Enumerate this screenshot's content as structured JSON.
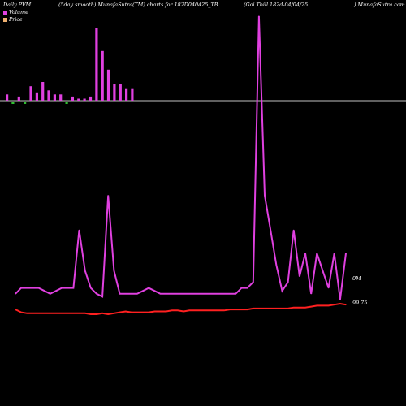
{
  "header": {
    "left": "Daily PVM",
    "center": "(5day smooth) MunafaSutra(TM) charts for 182D040425_TB",
    "right": "(Goi  Tbill 182d-04/04/25",
    "site": ") MunafaSutra.com"
  },
  "legend": [
    {
      "label": "Volume",
      "color": "#e040e0"
    },
    {
      "label": "Price",
      "color": "#f0b070"
    }
  ],
  "colors": {
    "volume_up": "#e040e0",
    "volume_down": "#30c030",
    "volume_line": "#e040e0",
    "price_line": "#ff2020",
    "baseline": "#ffffff"
  },
  "chart_data": {
    "type": "bar+line",
    "x": [
      1,
      2,
      3,
      4,
      5,
      6,
      7,
      8,
      9,
      10,
      11,
      12,
      13,
      14,
      15,
      16,
      17,
      18,
      19,
      20,
      21,
      22,
      23,
      24,
      25,
      26,
      27,
      28,
      29,
      30,
      31,
      32,
      33,
      34,
      35,
      36,
      37,
      38,
      39,
      40,
      41,
      42,
      43,
      44,
      45,
      46,
      47,
      48,
      49,
      50,
      51,
      52,
      53,
      54,
      55,
      56,
      57,
      58
    ],
    "volume_bars": [
      {
        "i": 0,
        "v": 3,
        "up": true
      },
      {
        "i": 1,
        "v": 2,
        "up": false
      },
      {
        "i": 2,
        "v": 2,
        "up": true
      },
      {
        "i": 3,
        "v": 2,
        "up": false
      },
      {
        "i": 4,
        "v": 7,
        "up": true
      },
      {
        "i": 5,
        "v": 4,
        "up": true
      },
      {
        "i": 6,
        "v": 9,
        "up": true
      },
      {
        "i": 7,
        "v": 5,
        "up": true
      },
      {
        "i": 8,
        "v": 3,
        "up": true
      },
      {
        "i": 9,
        "v": 3,
        "up": true
      },
      {
        "i": 10,
        "v": 2,
        "up": false
      },
      {
        "i": 11,
        "v": 2,
        "up": true
      },
      {
        "i": 12,
        "v": 1,
        "up": true
      },
      {
        "i": 13,
        "v": 1,
        "up": true
      },
      {
        "i": 14,
        "v": 2,
        "up": true
      },
      {
        "i": 15,
        "v": 35,
        "up": true
      },
      {
        "i": 16,
        "v": 24,
        "up": true
      },
      {
        "i": 17,
        "v": 15,
        "up": true
      },
      {
        "i": 18,
        "v": 8,
        "up": true
      },
      {
        "i": 19,
        "v": 8,
        "up": true
      },
      {
        "i": 20,
        "v": 6,
        "up": true
      },
      {
        "i": 21,
        "v": 6,
        "up": true
      }
    ],
    "volume_line": [
      4,
      6,
      6,
      6,
      6,
      5,
      4,
      5,
      6,
      6,
      6,
      26,
      12,
      6,
      4,
      3,
      38,
      12,
      4,
      4,
      4,
      4,
      5,
      6,
      5,
      4,
      4,
      4,
      4,
      4,
      4,
      4,
      4,
      4,
      4,
      4,
      4,
      4,
      4,
      6,
      6,
      8,
      100,
      38,
      26,
      14,
      5,
      8,
      26,
      10,
      18,
      4,
      18,
      12,
      6,
      18,
      2,
      18
    ],
    "price_line": [
      99.6,
      99.57,
      99.56,
      99.56,
      99.56,
      99.56,
      99.56,
      99.56,
      99.56,
      99.56,
      99.56,
      99.56,
      99.56,
      99.55,
      99.55,
      99.56,
      99.55,
      99.56,
      99.57,
      99.58,
      99.57,
      99.57,
      99.57,
      99.57,
      99.58,
      99.58,
      99.58,
      99.59,
      99.59,
      99.58,
      99.59,
      99.59,
      99.59,
      99.59,
      99.59,
      99.59,
      99.59,
      99.6,
      99.6,
      99.6,
      99.6,
      99.61,
      99.61,
      99.61,
      99.61,
      99.61,
      99.61,
      99.61,
      99.62,
      99.62,
      99.62,
      99.63,
      99.64,
      99.64,
      99.64,
      99.65,
      99.66,
      99.65
    ],
    "right_labels": {
      "volume": "0M",
      "price": "99.75"
    }
  }
}
